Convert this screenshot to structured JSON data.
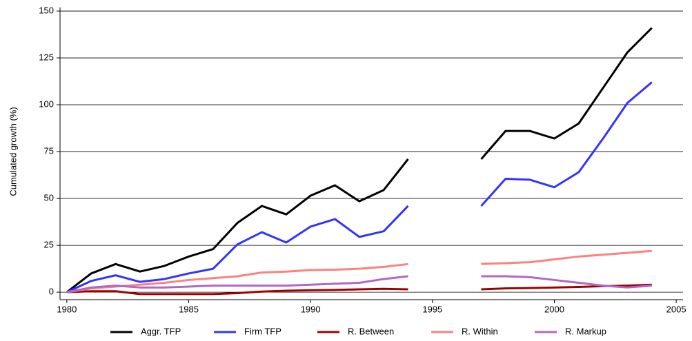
{
  "chart_data": {
    "type": "line",
    "y_label": "Cumulated growth (%)",
    "x": [
      1980,
      1981,
      1982,
      1983,
      1984,
      1985,
      1986,
      1987,
      1988,
      1989,
      1990,
      1991,
      1992,
      1993,
      1994,
      1995,
      1996,
      1997,
      1998,
      1999,
      2000,
      2001,
      2002,
      2003,
      2004
    ],
    "series": [
      {
        "name": "Aggr. TFP",
        "color": "#000000",
        "values": [
          0,
          10,
          15,
          11,
          14,
          19,
          23,
          37,
          46,
          41.5,
          51.5,
          57,
          48.5,
          54.5,
          71,
          null,
          null,
          71,
          86,
          86,
          82,
          90,
          109,
          128,
          141
        ]
      },
      {
        "name": "Firm TFP",
        "color": "#3333ff",
        "values": [
          0,
          6,
          9,
          5.5,
          7,
          10,
          12.5,
          25.5,
          32,
          26.5,
          35,
          39,
          29.5,
          32.5,
          46,
          null,
          null,
          46,
          60.5,
          60,
          56,
          64,
          82,
          101,
          112
        ]
      },
      {
        "name": "R. Between",
        "color": "#a00000",
        "values": [
          0,
          0.5,
          0.5,
          -1,
          -1,
          -1,
          -1,
          -0.5,
          0.3,
          0.8,
          1,
          1.2,
          1.5,
          1.8,
          1.5,
          null,
          null,
          1.5,
          2,
          2.2,
          2.5,
          2.8,
          3.2,
          3.5,
          4
        ]
      },
      {
        "name": "R. Within",
        "color": "#ff8080",
        "values": [
          0,
          2,
          3,
          4,
          5,
          6.5,
          7.5,
          8.5,
          10.5,
          11,
          11.8,
          12,
          12.5,
          13.5,
          15,
          null,
          null,
          15,
          15.5,
          16,
          17.5,
          19,
          20,
          21,
          22
        ]
      },
      {
        "name": "R. Markup",
        "color": "#b266c8",
        "values": [
          0,
          2.5,
          3.5,
          2.5,
          2.5,
          3,
          3.5,
          3.5,
          3.5,
          3.5,
          4,
          4.5,
          5,
          7,
          8.5,
          null,
          null,
          8.5,
          8.5,
          8,
          6.5,
          5,
          3.5,
          2.5,
          3.5
        ]
      }
    ],
    "xlim": [
      1979.72,
      2005.28
    ],
    "xticks": [
      1980,
      1985,
      1990,
      1995,
      2000,
      2005
    ],
    "ylim": [
      -4,
      152
    ],
    "yticks": [
      0,
      25,
      50,
      75,
      100,
      125,
      150
    ],
    "grid": true,
    "legend": "bottom"
  }
}
